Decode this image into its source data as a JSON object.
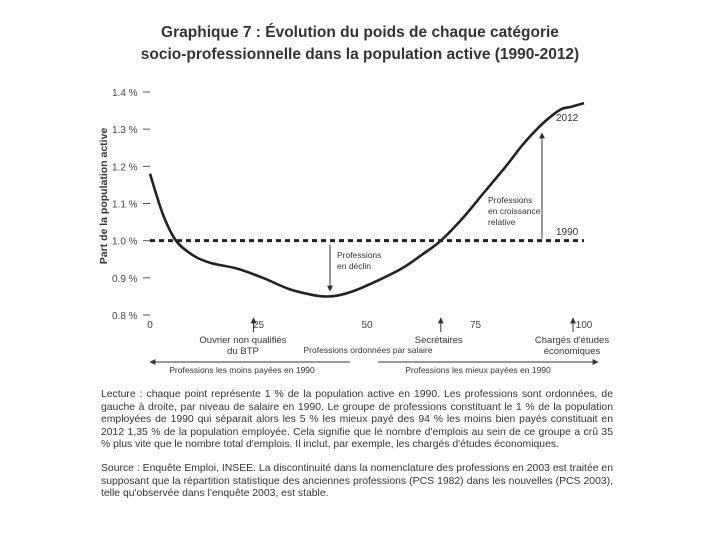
{
  "figure": {
    "title_line1": "Graphique 7 : Évolution du poids de chaque catégorie",
    "title_line2": "socio-professionnelle dans la population active (1990-2012)",
    "lecture": "Lecture : chaque point représente 1 % de la population active en 1990. Les professions sont ordonnées, de gauche à droite, par niveau de salaire en 1990. Le groupe de professions constituant le 1 % de la population employées de 1990 qui séparait alors les 5 % les mieux payé des 94 % les moins bien payés constituait en 2012 1,35 % de la population employée. Cela signifie que le nombre d'emplois au sein de ce groupe a crû 35 % plus vite que le nombre total d'emplois. Il inclut, par exemple, les chargés d'études économiques.",
    "source": "Source : Enquête Emploi, INSEE. La discontinuité dans la nomenclature des professions en 2003 est traitée en supposant que la répartition statistique des anciennes professions (PCS 1982) dans les nouvelles (PCS 2003), telle qu'observée dans l'enquête 2003, est stable."
  },
  "chart_data": {
    "type": "line",
    "ylabel": "Part de la population active",
    "xlabel": "Professions ordonnées par salaire",
    "xlim": [
      0,
      100
    ],
    "ylim": [
      0.8,
      1.4
    ],
    "x_ticks": [
      "0",
      "25",
      "50",
      "75",
      "100"
    ],
    "y_ticks": [
      "1.4 %",
      "1.3 %",
      "1.2 %",
      "1.1 %",
      "1.0 %",
      "0.9 %",
      "0.8 %"
    ],
    "series": [
      {
        "name": "2012",
        "x": [
          0,
          3,
          6,
          10,
          14,
          20,
          26,
          32,
          37,
          40,
          43,
          47,
          52,
          58,
          63,
          67,
          72,
          77,
          82,
          86,
          90,
          93,
          95,
          97,
          100
        ],
        "values": [
          1.18,
          1.07,
          1.0,
          0.96,
          0.94,
          0.925,
          0.9,
          0.87,
          0.855,
          0.85,
          0.852,
          0.865,
          0.89,
          0.925,
          0.965,
          1.0,
          1.06,
          1.13,
          1.2,
          1.26,
          1.31,
          1.34,
          1.355,
          1.36,
          1.37
        ]
      },
      {
        "name": "1990",
        "x": [
          0,
          100
        ],
        "values": [
          1.0,
          1.0
        ]
      }
    ],
    "line_labels": {
      "y2012": "2012",
      "y1990": "1990"
    },
    "annotations": {
      "decline": "Professions\nen déclin",
      "growth": "Professions\nen croissance\nrelative",
      "x_markers": [
        {
          "x": 25,
          "label": "Ouvrier non qualifiés\ndu BTP"
        },
        {
          "x": 67,
          "label": "Secrétaires"
        },
        {
          "x": 98,
          "label": "Chargés d'études\néconomiques"
        }
      ],
      "low_pay": "Professions les moins payées en 1990",
      "high_pay": "Professions les mieux payées en 1990"
    }
  }
}
